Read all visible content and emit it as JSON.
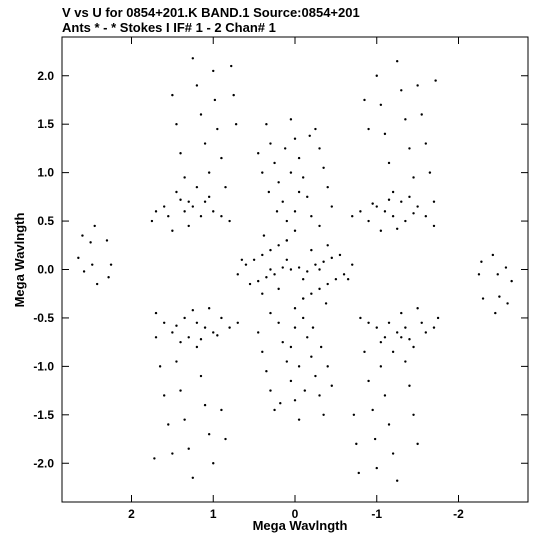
{
  "chart_data": {
    "type": "scatter",
    "title": "V vs U for 0854+201.K BAND.1   Source:0854+201",
    "subtitle": "Ants * - *     Stokes I  IF# 1 - 2  Chan# 1",
    "xlabel": "Mega Wavlngth",
    "ylabel": "Mega Wavlngth",
    "xlim": [
      2.85,
      -2.85
    ],
    "ylim": [
      -2.4,
      2.4
    ],
    "x_ticks": [
      2,
      1,
      0,
      -1,
      -2
    ],
    "x_tick_labels": [
      "2",
      "1",
      "0",
      "-1",
      "-2"
    ],
    "y_ticks": [
      2.0,
      1.5,
      1.0,
      0.5,
      0.0,
      -0.5,
      -1.0,
      -1.5,
      -2.0
    ],
    "y_tick_labels": [
      "2.0",
      "1.5",
      "1.0",
      "0.5",
      "0.0",
      "-0.5",
      "-1.0",
      "-1.5",
      "-2.0"
    ],
    "grid": false,
    "point_color": "#000000",
    "series": [
      {
        "points": [
          [
            2.6,
            0.35
          ],
          [
            2.65,
            0.12
          ],
          [
            2.58,
            -0.02
          ],
          [
            2.45,
            0.45
          ],
          [
            2.5,
            0.28
          ],
          [
            2.48,
            0.05
          ],
          [
            2.42,
            -0.15
          ],
          [
            2.3,
            0.3
          ],
          [
            2.25,
            0.05
          ],
          [
            2.28,
            -0.08
          ],
          [
            -2.6,
            -0.35
          ],
          [
            -2.65,
            -0.12
          ],
          [
            -2.58,
            0.02
          ],
          [
            -2.45,
            -0.45
          ],
          [
            -2.5,
            -0.28
          ],
          [
            -2.48,
            -0.05
          ],
          [
            -2.42,
            0.15
          ],
          [
            -2.3,
            -0.3
          ],
          [
            -2.25,
            -0.05
          ],
          [
            -2.28,
            0.08
          ],
          [
            1.5,
            1.8
          ],
          [
            1.45,
            1.5
          ],
          [
            1.4,
            1.2
          ],
          [
            1.35,
            0.95
          ],
          [
            1.3,
            0.7
          ],
          [
            1.25,
            2.18
          ],
          [
            1.2,
            1.9
          ],
          [
            1.15,
            1.6
          ],
          [
            1.1,
            1.3
          ],
          [
            1.05,
            1.0
          ],
          [
            1.0,
            2.05
          ],
          [
            0.98,
            1.75
          ],
          [
            0.95,
            1.45
          ],
          [
            0.9,
            1.15
          ],
          [
            0.85,
            0.85
          ],
          [
            0.78,
            2.1
          ],
          [
            0.75,
            1.8
          ],
          [
            0.72,
            1.5
          ],
          [
            1.6,
            0.65
          ],
          [
            1.7,
            0.6
          ],
          [
            1.75,
            0.5
          ],
          [
            1.55,
            0.55
          ],
          [
            1.45,
            0.8
          ],
          [
            1.35,
            0.6
          ],
          [
            1.2,
            0.85
          ],
          [
            1.1,
            0.7
          ],
          [
            1.0,
            0.6
          ],
          [
            0.9,
            0.55
          ],
          [
            0.8,
            0.5
          ],
          [
            1.3,
            0.45
          ],
          [
            1.5,
            0.4
          ],
          [
            1.15,
            0.55
          ],
          [
            1.05,
            0.75
          ],
          [
            1.4,
            0.72
          ],
          [
            1.25,
            0.65
          ],
          [
            -1.5,
            -1.8
          ],
          [
            -1.45,
            -1.5
          ],
          [
            -1.4,
            -1.2
          ],
          [
            -1.35,
            -0.95
          ],
          [
            -1.3,
            -0.7
          ],
          [
            -1.25,
            -2.18
          ],
          [
            -1.2,
            -1.9
          ],
          [
            -1.15,
            -1.6
          ],
          [
            -1.1,
            -1.3
          ],
          [
            -1.05,
            -1.0
          ],
          [
            -1.0,
            -2.05
          ],
          [
            -0.98,
            -1.75
          ],
          [
            -0.95,
            -1.45
          ],
          [
            -0.9,
            -1.15
          ],
          [
            -0.85,
            -0.85
          ],
          [
            -0.78,
            -2.1
          ],
          [
            -0.75,
            -1.8
          ],
          [
            -0.72,
            -1.5
          ],
          [
            -1.6,
            -0.65
          ],
          [
            -1.7,
            -0.6
          ],
          [
            -1.75,
            -0.5
          ],
          [
            -1.55,
            -0.55
          ],
          [
            -1.45,
            -0.8
          ],
          [
            -1.35,
            -0.6
          ],
          [
            -1.2,
            -0.85
          ],
          [
            -1.1,
            -0.7
          ],
          [
            -1.0,
            -0.6
          ],
          [
            -0.9,
            -0.55
          ],
          [
            -0.8,
            -0.5
          ],
          [
            -1.3,
            -0.45
          ],
          [
            -1.5,
            -0.4
          ],
          [
            -1.15,
            -0.55
          ],
          [
            -1.05,
            -0.75
          ],
          [
            -1.4,
            -0.72
          ],
          [
            -1.25,
            -0.65
          ],
          [
            -1.0,
            2.0
          ],
          [
            -1.05,
            1.7
          ],
          [
            -1.1,
            1.4
          ],
          [
            -1.15,
            1.1
          ],
          [
            -1.2,
            0.8
          ],
          [
            -1.25,
            2.15
          ],
          [
            -1.3,
            1.85
          ],
          [
            -1.35,
            1.55
          ],
          [
            -1.4,
            1.25
          ],
          [
            -1.45,
            0.95
          ],
          [
            -1.5,
            1.9
          ],
          [
            -1.55,
            1.6
          ],
          [
            -1.6,
            1.3
          ],
          [
            -1.65,
            1.0
          ],
          [
            -1.7,
            0.7
          ],
          [
            -1.72,
            1.95
          ],
          [
            -0.85,
            1.75
          ],
          [
            -0.9,
            1.45
          ],
          [
            -0.7,
            0.55
          ],
          [
            -0.8,
            0.6
          ],
          [
            -0.9,
            0.5
          ],
          [
            -1.0,
            0.65
          ],
          [
            -1.1,
            0.6
          ],
          [
            -1.2,
            0.55
          ],
          [
            -1.3,
            0.7
          ],
          [
            -1.4,
            0.75
          ],
          [
            -1.5,
            0.65
          ],
          [
            -1.6,
            0.55
          ],
          [
            -1.7,
            0.45
          ],
          [
            -1.25,
            0.42
          ],
          [
            -1.05,
            0.4
          ],
          [
            -1.35,
            0.5
          ],
          [
            -1.15,
            0.72
          ],
          [
            -1.45,
            0.58
          ],
          [
            -0.95,
            0.68
          ],
          [
            1.0,
            -2.0
          ],
          [
            1.05,
            -1.7
          ],
          [
            1.1,
            -1.4
          ],
          [
            1.15,
            -1.1
          ],
          [
            1.2,
            -0.8
          ],
          [
            1.25,
            -2.15
          ],
          [
            1.3,
            -1.85
          ],
          [
            1.35,
            -1.55
          ],
          [
            1.4,
            -1.25
          ],
          [
            1.45,
            -0.95
          ],
          [
            1.5,
            -1.9
          ],
          [
            1.55,
            -1.6
          ],
          [
            1.6,
            -1.3
          ],
          [
            1.65,
            -1.0
          ],
          [
            1.7,
            -0.7
          ],
          [
            1.72,
            -1.95
          ],
          [
            0.85,
            -1.75
          ],
          [
            0.9,
            -1.45
          ],
          [
            0.7,
            -0.55
          ],
          [
            0.8,
            -0.6
          ],
          [
            0.9,
            -0.5
          ],
          [
            1.0,
            -0.65
          ],
          [
            1.1,
            -0.6
          ],
          [
            1.2,
            -0.55
          ],
          [
            1.3,
            -0.7
          ],
          [
            1.4,
            -0.75
          ],
          [
            1.5,
            -0.65
          ],
          [
            1.6,
            -0.55
          ],
          [
            1.7,
            -0.45
          ],
          [
            1.25,
            -0.42
          ],
          [
            1.05,
            -0.4
          ],
          [
            1.35,
            -0.5
          ],
          [
            1.15,
            -0.72
          ],
          [
            1.45,
            -0.58
          ],
          [
            0.95,
            -0.68
          ],
          [
            0.35,
            1.5
          ],
          [
            0.3,
            1.3
          ],
          [
            0.25,
            1.1
          ],
          [
            0.2,
            0.9
          ],
          [
            0.15,
            0.7
          ],
          [
            0.1,
            0.5
          ],
          [
            0.05,
            1.55
          ],
          [
            0.0,
            1.35
          ],
          [
            -0.05,
            1.15
          ],
          [
            -0.1,
            0.95
          ],
          [
            -0.15,
            0.75
          ],
          [
            -0.2,
            0.55
          ],
          [
            -0.25,
            1.45
          ],
          [
            -0.3,
            1.25
          ],
          [
            -0.35,
            1.05
          ],
          [
            -0.4,
            0.85
          ],
          [
            -0.45,
            0.65
          ],
          [
            0.45,
            1.2
          ],
          [
            0.4,
            1.0
          ],
          [
            0.32,
            0.8
          ],
          [
            0.05,
            1.0
          ],
          [
            -0.05,
            0.8
          ],
          [
            0.0,
            0.6
          ],
          [
            0.12,
            1.25
          ],
          [
            -0.18,
            1.38
          ],
          [
            0.22,
            0.6
          ],
          [
            -0.3,
            0.45
          ],
          [
            0.38,
            0.35
          ],
          [
            0.0,
            0.4
          ],
          [
            0.1,
            0.3
          ],
          [
            -0.35,
            -1.5
          ],
          [
            -0.3,
            -1.3
          ],
          [
            -0.25,
            -1.1
          ],
          [
            -0.2,
            -0.9
          ],
          [
            -0.15,
            -0.7
          ],
          [
            -0.1,
            -0.5
          ],
          [
            -0.05,
            -1.55
          ],
          [
            0.0,
            -1.35
          ],
          [
            0.05,
            -1.15
          ],
          [
            0.1,
            -0.95
          ],
          [
            0.15,
            -0.75
          ],
          [
            0.2,
            -0.55
          ],
          [
            0.25,
            -1.45
          ],
          [
            0.3,
            -1.25
          ],
          [
            0.35,
            -1.05
          ],
          [
            0.4,
            -0.85
          ],
          [
            0.45,
            -0.65
          ],
          [
            -0.45,
            -1.2
          ],
          [
            -0.4,
            -1.0
          ],
          [
            -0.32,
            -0.8
          ],
          [
            -0.05,
            -1.0
          ],
          [
            0.05,
            -0.8
          ],
          [
            0.0,
            -0.6
          ],
          [
            -0.12,
            -1.25
          ],
          [
            0.18,
            -1.38
          ],
          [
            -0.22,
            -0.6
          ],
          [
            0.3,
            -0.45
          ],
          [
            -0.38,
            -0.35
          ],
          [
            0.0,
            -0.4
          ],
          [
            -0.1,
            -0.3
          ],
          [
            0.6,
            0.05
          ],
          [
            0.5,
            0.1
          ],
          [
            0.4,
            0.15
          ],
          [
            0.3,
            0.2
          ],
          [
            0.2,
            0.25
          ],
          [
            0.1,
            0.3
          ],
          [
            -0.1,
            -0.3
          ],
          [
            -0.2,
            -0.25
          ],
          [
            -0.3,
            -0.2
          ],
          [
            -0.4,
            -0.15
          ],
          [
            -0.5,
            -0.1
          ],
          [
            -0.6,
            -0.05
          ],
          [
            0.55,
            -0.15
          ],
          [
            0.45,
            -0.12
          ],
          [
            0.35,
            -0.08
          ],
          [
            0.25,
            -0.05
          ],
          [
            0.15,
            0.02
          ],
          [
            -0.15,
            -0.02
          ],
          [
            -0.25,
            0.05
          ],
          [
            -0.35,
            0.08
          ],
          [
            -0.45,
            0.12
          ],
          [
            -0.55,
            0.15
          ],
          [
            0.3,
            0.0
          ],
          [
            -0.3,
            0.0
          ],
          [
            0.1,
            0.1
          ],
          [
            -0.1,
            -0.1
          ],
          [
            0.2,
            -0.2
          ],
          [
            -0.2,
            0.2
          ],
          [
            0.05,
            0.0
          ],
          [
            -0.05,
            0.02
          ],
          [
            0.7,
            -0.05
          ],
          [
            -0.7,
            0.05
          ],
          [
            0.65,
            0.1
          ],
          [
            -0.65,
            -0.1
          ],
          [
            0.4,
            -0.25
          ],
          [
            -0.4,
            0.25
          ]
        ]
      }
    ]
  }
}
